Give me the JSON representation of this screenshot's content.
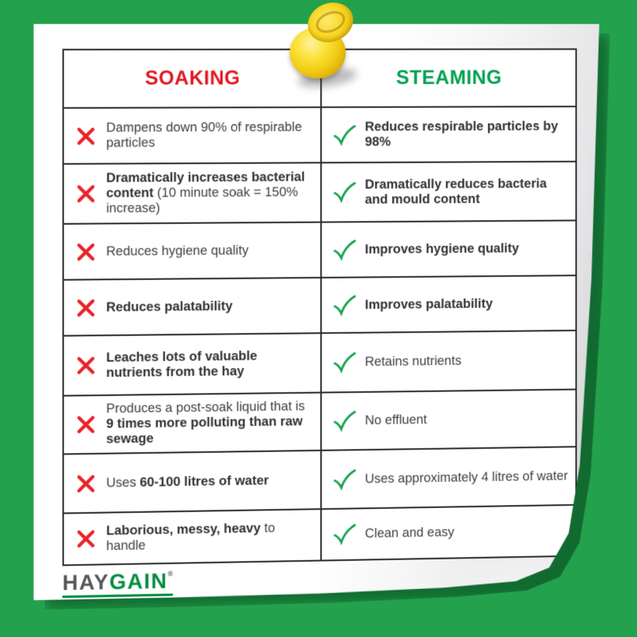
{
  "colors": {
    "background_green": "#24a14c",
    "soaking_red": "#e4161f",
    "steaming_green": "#00a150",
    "cross_red": "#e8232a",
    "check_green": "#17a24b",
    "pin_yellow": "#f2cd16",
    "logo_gray": "#55565a",
    "logo_green": "#008c3f",
    "text_dark": "#3d3d3d",
    "table_border": "#2a2a2a"
  },
  "header": {
    "soaking": "SOAKING",
    "steaming": "STEAMING"
  },
  "icons": {
    "soaking": "cross-icon",
    "steaming": "check-icon"
  },
  "rows": [
    {
      "soaking": [
        {
          "text": "Dampens down 90% of respirable particles",
          "bold": false
        }
      ],
      "steaming": [
        {
          "text": "Reduces respirable particles by 98%",
          "bold": true
        }
      ]
    },
    {
      "soaking": [
        {
          "text": "Dramatically increases bacterial content",
          "bold": true
        },
        {
          "text": " (10 minute soak = 150% increase)",
          "bold": false
        }
      ],
      "steaming": [
        {
          "text": "Dramatically reduces bacteria and mould content",
          "bold": true
        }
      ]
    },
    {
      "soaking": [
        {
          "text": "Reduces hygiene quality",
          "bold": false
        }
      ],
      "steaming": [
        {
          "text": "Improves hygiene quality",
          "bold": true
        }
      ]
    },
    {
      "soaking": [
        {
          "text": "Reduces palatability",
          "bold": true
        }
      ],
      "steaming": [
        {
          "text": "Improves palatability",
          "bold": true
        }
      ]
    },
    {
      "soaking": [
        {
          "text": "Leaches lots of valuable nutrients from the hay",
          "bold": true
        }
      ],
      "steaming": [
        {
          "text": "Retains nutrients",
          "bold": false
        }
      ]
    },
    {
      "soaking": [
        {
          "text": "Produces a post-soak liquid that is ",
          "bold": false
        },
        {
          "text": "9 times more polluting than raw sewage",
          "bold": true
        }
      ],
      "steaming": [
        {
          "text": "No effluent",
          "bold": false
        }
      ]
    },
    {
      "soaking": [
        {
          "text": "Uses ",
          "bold": false
        },
        {
          "text": "60-100 litres of water",
          "bold": true
        }
      ],
      "steaming": [
        {
          "text": "Uses approximately 4 litres of water",
          "bold": false
        }
      ]
    },
    {
      "soaking": [
        {
          "text": "Laborious, messy, heavy",
          "bold": true
        },
        {
          "text": " to handle",
          "bold": false
        }
      ],
      "steaming": [
        {
          "text": "Clean and easy",
          "bold": false
        }
      ]
    }
  ],
  "footer": {
    "logo_hay": "HAY",
    "logo_gain": "GAIN",
    "logo_mark": "®"
  }
}
